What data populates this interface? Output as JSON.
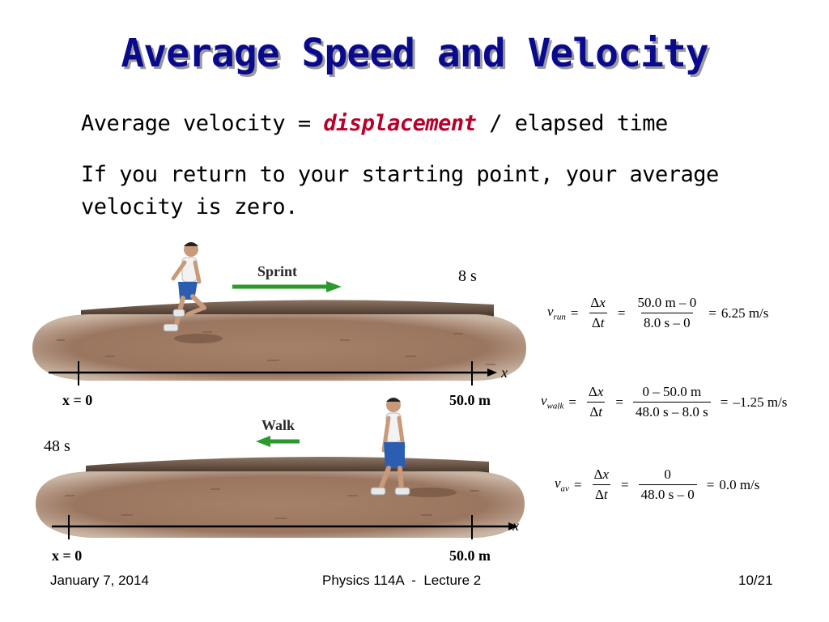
{
  "slide": {
    "title": "Average Speed and Velocity",
    "line1_prefix": "Average velocity = ",
    "line1_emph": "displacement",
    "line1_suffix": " / elapsed time",
    "line2": "If you return to your starting point, your average velocity is zero."
  },
  "figure": {
    "top": {
      "arrow_label": "Sprint",
      "time": "8 s",
      "axis_var": "x",
      "start_label": "x = 0",
      "end_label": "50.0 m"
    },
    "bottom": {
      "arrow_label": "Walk",
      "time": "48 s",
      "axis_var": "x",
      "start_label": "x = 0",
      "end_label": "50.0 m"
    }
  },
  "equations": {
    "run": {
      "var": "v",
      "sub": "run",
      "num1_delta": "Δ",
      "num1_var": "x",
      "den1_delta": "Δ",
      "den1_var": "t",
      "num2": "50.0 m – 0",
      "den2": "8.0 s – 0",
      "result": "6.25 m/s"
    },
    "walk": {
      "var": "v",
      "sub": "walk",
      "num1_delta": "Δ",
      "num1_var": "x",
      "den1_delta": "Δ",
      "den1_var": "t",
      "num2": "0 – 50.0 m",
      "den2": "48.0 s – 8.0 s",
      "result": "–1.25 m/s"
    },
    "av": {
      "var": "v",
      "sub": "av",
      "num1_delta": "Δ",
      "num1_var": "x",
      "den1_delta": "Δ",
      "den1_var": "t",
      "num2": "0",
      "den2": "48.0 s – 0",
      "result": "0.0 m/s"
    },
    "eq_sign": "="
  },
  "footer": {
    "date": "January 7, 2014",
    "course": "Physics 114A  -  Lecture 2",
    "page": "10/21"
  },
  "colors": {
    "title": "#0a0a8c",
    "emphasis": "#b8002a",
    "track_fill": "#a5826a",
    "track_top": "#5c4737",
    "arrow": "#2a9a2a"
  }
}
